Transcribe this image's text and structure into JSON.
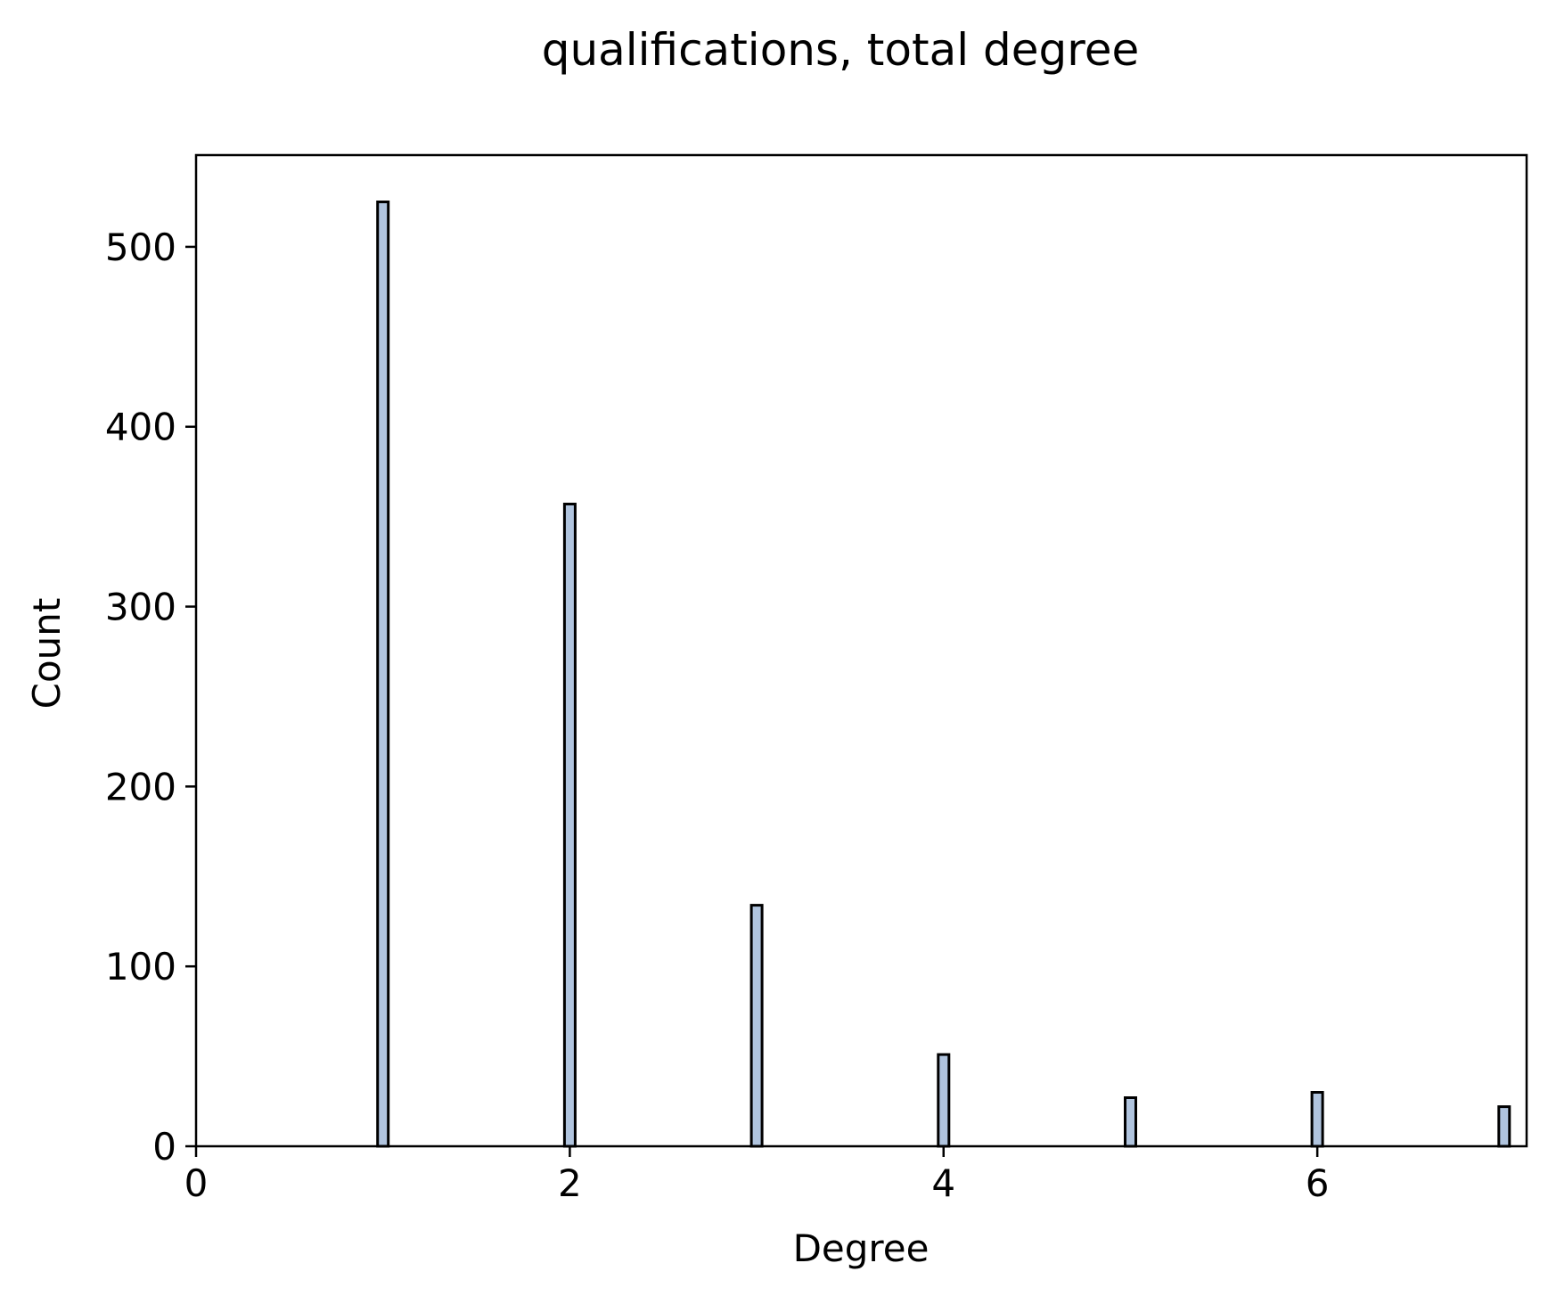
{
  "chart_data": {
    "type": "bar",
    "title": "qualifications, total degree",
    "xlabel": "Degree",
    "ylabel": "Count",
    "x": [
      1,
      2,
      3,
      4,
      5,
      6,
      7
    ],
    "values": [
      525,
      357,
      134,
      51,
      27,
      30,
      22
    ],
    "xlim": [
      0,
      7.12
    ],
    "ylim": [
      0,
      551
    ],
    "xticks": [
      {
        "value": 0,
        "label": "0"
      },
      {
        "value": 2,
        "label": "2"
      },
      {
        "value": 4,
        "label": "4"
      },
      {
        "value": 6,
        "label": "6"
      }
    ],
    "yticks": [
      {
        "value": 0,
        "label": "0"
      },
      {
        "value": 100,
        "label": "100"
      },
      {
        "value": 200,
        "label": "200"
      },
      {
        "value": 300,
        "label": "300"
      },
      {
        "value": 400,
        "label": "400"
      },
      {
        "value": 500,
        "label": "500"
      }
    ],
    "bar_color": "#b0c4de",
    "edge_color": "#000000",
    "grid": false,
    "legend": "none"
  }
}
